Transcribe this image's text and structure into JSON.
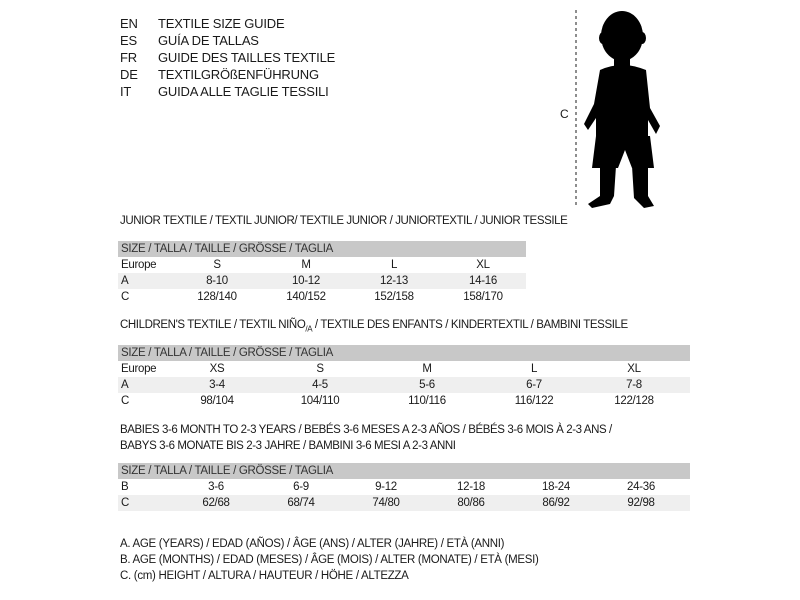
{
  "languages": [
    {
      "code": "EN",
      "text": "TEXTILE SIZE GUIDE"
    },
    {
      "code": "ES",
      "text": "GUÍA DE TALLAS"
    },
    {
      "code": "FR",
      "text": "GUIDE DES TAILLES TEXTILE"
    },
    {
      "code": "DE",
      "text": "TEXTILGRÖßENFÜHRUNG"
    },
    {
      "code": "IT",
      "text": "GUIDA ALLE TAGLIE TESSILI"
    }
  ],
  "figure": {
    "measure_label": "C",
    "icon": "child-silhouette"
  },
  "junior": {
    "title": "JUNIOR TEXTILE / TEXTIL JUNIOR/ TEXTILE JUNIOR / JUNIORTEXTIL / JUNIOR TESSILE",
    "header": "SIZE / TALLA / TAILLE / GRÖSSE / TAGLIA",
    "rows": [
      {
        "label": "Europe",
        "values": [
          "S",
          "M",
          "L",
          "XL"
        ]
      },
      {
        "label": "A",
        "values": [
          "8-10",
          "10-12",
          "12-13",
          "14-16"
        ]
      },
      {
        "label": "C",
        "values": [
          "128/140",
          "140/152",
          "152/158",
          "158/170"
        ]
      }
    ]
  },
  "children": {
    "title": "CHILDREN'S TEXTILE / TEXTIL NIÑO",
    "title_sub": "/A",
    "title_rest": " / TEXTILE DES ENFANTS / KINDERTEXTIL / BAMBINI TESSILE",
    "header": "SIZE / TALLA / TAILLE / GRÖSSE / TAGLIA",
    "rows": [
      {
        "label": "Europe",
        "values": [
          "XS",
          "S",
          "M",
          "L",
          "XL"
        ]
      },
      {
        "label": "A",
        "values": [
          "3-4",
          "4-5",
          "5-6",
          "6-7",
          "7-8"
        ]
      },
      {
        "label": "C",
        "values": [
          "98/104",
          "104/110",
          "110/116",
          "116/122",
          "122/128"
        ]
      }
    ]
  },
  "babies": {
    "title_line1": "BABIES 3-6 MONTH TO 2-3 YEARS / BEBÉS 3-6 MESES A 2-3 AÑOS / BÉBÉS 3-6 MOIS À 2-3 ANS /",
    "title_line2": "BABYS 3-6 MONATE BIS 2-3 JAHRE / BAMBINI 3-6 MESI A 2-3 ANNI",
    "header": "SIZE / TALLA / TAILLE / GRÖSSE / TAGLIA",
    "rows": [
      {
        "label": "B",
        "values": [
          "3-6",
          "6-9",
          "9-12",
          "12-18",
          "18-24",
          "24-36"
        ]
      },
      {
        "label": "C",
        "values": [
          "62/68",
          "68/74",
          "74/80",
          "80/86",
          "86/92",
          "92/98"
        ]
      }
    ]
  },
  "legend": [
    "A. AGE (YEARS) / EDAD (AÑOS) / ÂGE (ANS) / ALTER (JAHRE) / ETÀ (ANNI)",
    "B. AGE (MONTHS) / EDAD (MESES) / ÂGE (MOIS) / ALTER (MONATE) / ETÀ (MESI)",
    "C. (cm) HEIGHT / ALTURA / HAUTEUR / HÖHE / ALTEZZA"
  ],
  "colors": {
    "header_bg": "#c8c8c8",
    "alt_row_bg": "#efefef",
    "text": "#1a1a1a"
  }
}
